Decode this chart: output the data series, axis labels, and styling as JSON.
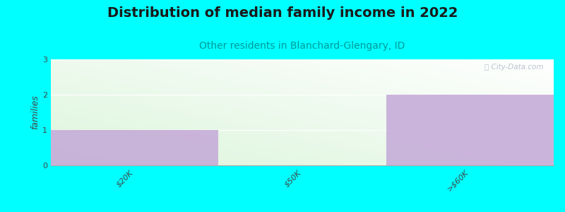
{
  "title": "Distribution of median family income in 2022",
  "subtitle": "Other residents in Blanchard-Glengary, ID",
  "categories": [
    "$20K",
    "$50K",
    ">$60K"
  ],
  "values": [
    1,
    0,
    2
  ],
  "bar_color": "#c4a8d8",
  "background_color": "#00ffff",
  "ylabel": "families",
  "ylim": [
    0,
    3
  ],
  "yticks": [
    0,
    1,
    2,
    3
  ],
  "watermark": "ⓘ City-Data.com",
  "title_fontsize": 14,
  "subtitle_fontsize": 10,
  "subtitle_color": "#009999",
  "tick_label_fontsize": 8
}
